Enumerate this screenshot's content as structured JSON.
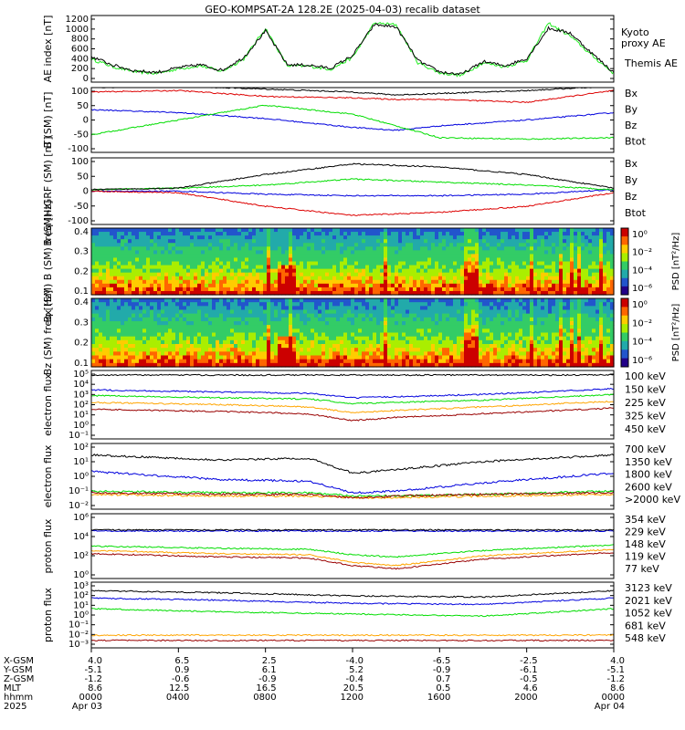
{
  "title": "GEO-KOMPSAT-2A 128.2E (2025-04-03) recalib dataset",
  "colors": {
    "black": "#000000",
    "blue": "#0000dd",
    "green": "#00dd00",
    "red": "#dd0000",
    "orange": "#ffa500",
    "darkred": "#990000",
    "kyoto": "#22ee22"
  },
  "chart_data": [
    {
      "type": "line",
      "panel": "ae",
      "ylabel": "AE index [nT]",
      "yticks": [
        "1200",
        "1000",
        "800",
        "600",
        "400",
        "200",
        "0"
      ],
      "ylim": [
        0,
        1300
      ],
      "series": [
        {
          "name": "Kyoto proxy AE",
          "color": "#22ee22",
          "x": [
            0,
            1,
            2,
            3,
            4,
            5,
            6,
            7,
            8,
            9,
            10,
            11,
            12,
            13,
            14,
            15,
            16,
            17,
            18,
            19,
            20,
            21,
            22,
            23,
            24
          ],
          "values": [
            450,
            300,
            200,
            170,
            260,
            320,
            210,
            450,
            1050,
            320,
            310,
            250,
            480,
            1150,
            1120,
            380,
            180,
            130,
            380,
            300,
            420,
            1150,
            900,
            520,
            170
          ]
        },
        {
          "name": "Themis AE",
          "color": "#000000",
          "x": [
            0,
            1,
            2,
            3,
            4,
            5,
            6,
            7,
            8,
            9,
            10,
            11,
            12,
            13,
            14,
            15,
            16,
            17,
            18,
            19,
            20,
            21,
            22,
            23,
            24
          ],
          "values": [
            500,
            330,
            220,
            190,
            280,
            340,
            230,
            480,
            1000,
            340,
            330,
            270,
            520,
            1120,
            1080,
            420,
            200,
            150,
            400,
            320,
            460,
            1050,
            960,
            560,
            190
          ]
        }
      ]
    },
    {
      "type": "line",
      "panel": "b_sm",
      "ylabel": "B (SM) [nT]",
      "yticks": [
        "100",
        "50",
        "0",
        "-50",
        "-100"
      ],
      "ylim": [
        -110,
        110
      ],
      "series": [
        {
          "name": "Bx",
          "color": "#0000dd",
          "x": [
            0,
            4,
            8,
            12,
            14,
            16,
            20,
            24
          ],
          "values": [
            35,
            25,
            5,
            -25,
            -35,
            -20,
            0,
            25
          ]
        },
        {
          "name": "By",
          "color": "#00dd00",
          "x": [
            0,
            4,
            8,
            12,
            14,
            16,
            20,
            24
          ],
          "values": [
            -50,
            0,
            50,
            20,
            -20,
            -60,
            -65,
            -60
          ]
        },
        {
          "name": "Bz",
          "color": "#dd0000",
          "x": [
            0,
            4,
            8,
            12,
            14,
            16,
            20,
            24
          ],
          "values": [
            95,
            100,
            80,
            75,
            70,
            70,
            60,
            100
          ]
        },
        {
          "name": "Btot",
          "color": "#000000",
          "x": [
            0,
            4,
            8,
            12,
            14,
            16,
            20,
            24
          ],
          "values": [
            110,
            115,
            105,
            95,
            85,
            90,
            100,
            115
          ]
        }
      ]
    },
    {
      "type": "line",
      "panel": "b_sm_igrf",
      "ylabel": "B (SM)-IGRF (SM) [nT]",
      "yticks": [
        "100",
        "50",
        "0",
        "-50",
        "-100"
      ],
      "ylim": [
        -110,
        110
      ],
      "series": [
        {
          "name": "Bx",
          "color": "#0000dd",
          "x": [
            0,
            4,
            8,
            12,
            16,
            20,
            24
          ],
          "values": [
            0,
            0,
            -10,
            -15,
            -15,
            -10,
            5
          ]
        },
        {
          "name": "By",
          "color": "#00dd00",
          "x": [
            0,
            4,
            8,
            12,
            16,
            20,
            24
          ],
          "values": [
            5,
            10,
            20,
            40,
            30,
            20,
            5
          ]
        },
        {
          "name": "Bz",
          "color": "#dd0000",
          "x": [
            0,
            4,
            8,
            12,
            16,
            20,
            24
          ],
          "values": [
            0,
            -5,
            -50,
            -80,
            -70,
            -50,
            -5
          ]
        },
        {
          "name": "Btot",
          "color": "#000000",
          "x": [
            0,
            4,
            8,
            12,
            16,
            20,
            24
          ],
          "values": [
            5,
            10,
            55,
            90,
            80,
            55,
            10
          ]
        }
      ]
    },
    {
      "type": "heatmap",
      "panel": "bx_spec",
      "ylabel": "Bx (SM) B (SM) freq [Hz]",
      "yticks": [
        "0.4",
        "0.3",
        "0.2",
        "0.1"
      ],
      "ylim": [
        0.05,
        0.5
      ],
      "colorbar_label": "PSD [nT²/Hz]",
      "colorbar_ticks": [
        "10⁰",
        "10⁻²",
        "10⁻⁴",
        "10⁻⁶"
      ]
    },
    {
      "type": "heatmap",
      "panel": "bz_spec",
      "ylabel": "Bz (SM) freq [Hz]",
      "yticks": [
        "0.4",
        "0.3",
        "0.2",
        "0.1"
      ],
      "ylim": [
        0.05,
        0.5
      ],
      "colorbar_label": "PSD [nT²/Hz]",
      "colorbar_ticks": [
        "10⁰",
        "10⁻²",
        "10⁻⁴",
        "10⁻⁶"
      ]
    },
    {
      "type": "line",
      "panel": "e_low",
      "ylabel": "electron flux",
      "log": true,
      "yticks": [
        "10⁵",
        "10⁴",
        "10³",
        "10²",
        "10¹",
        "10⁰",
        "10⁻¹"
      ],
      "ylim": [
        -1,
        5
      ],
      "series": [
        {
          "name": "100 keV",
          "color": "#000000",
          "x": [
            0,
            6,
            10,
            12,
            14,
            18,
            24
          ],
          "values": [
            4.6,
            4.6,
            4.6,
            4.6,
            4.6,
            4.6,
            4.6
          ]
        },
        {
          "name": "150 keV",
          "color": "#0000dd",
          "x": [
            0,
            6,
            10,
            12,
            14,
            18,
            24
          ],
          "values": [
            3.3,
            3.1,
            3.0,
            2.6,
            2.7,
            2.9,
            3.4
          ]
        },
        {
          "name": "225 keV",
          "color": "#00dd00",
          "x": [
            0,
            6,
            10,
            12,
            14,
            18,
            24
          ],
          "values": [
            2.8,
            2.6,
            2.5,
            2.1,
            2.2,
            2.4,
            2.9
          ]
        },
        {
          "name": "325 keV",
          "color": "#ffa500",
          "x": [
            0,
            6,
            10,
            12,
            14,
            18,
            24
          ],
          "values": [
            2.2,
            2.0,
            1.8,
            1.3,
            1.5,
            1.8,
            2.3
          ]
        },
        {
          "name": "450 keV",
          "color": "#990000",
          "x": [
            0,
            6,
            10,
            12,
            14,
            18,
            24
          ],
          "values": [
            1.6,
            1.4,
            1.2,
            0.6,
            0.9,
            1.2,
            1.7
          ]
        }
      ]
    },
    {
      "type": "line",
      "panel": "e_high",
      "ylabel": "electron flux",
      "log": true,
      "yticks": [
        "10²",
        "10¹",
        "10⁰",
        "10⁻¹",
        "10⁻²"
      ],
      "ylim": [
        -2,
        2
      ],
      "series": [
        {
          "name": "700 keV",
          "color": "#000000",
          "x": [
            0,
            6,
            10,
            12,
            14,
            18,
            24
          ],
          "values": [
            1.3,
            1.0,
            1.1,
            0.2,
            0.4,
            0.9,
            1.3
          ]
        },
        {
          "name": "1350 keV",
          "color": "#0000dd",
          "x": [
            0,
            6,
            10,
            12,
            14,
            18,
            24
          ],
          "values": [
            0.3,
            -0.2,
            -0.3,
            -1.0,
            -0.9,
            -0.4,
            0.2
          ]
        },
        {
          "name": "1800 keV",
          "color": "#00dd00",
          "x": [
            0,
            6,
            10,
            12,
            14,
            18,
            24
          ],
          "values": [
            -0.9,
            -1.0,
            -1.0,
            -1.2,
            -1.2,
            -1.1,
            -0.9
          ]
        },
        {
          "name": "2600 keV",
          "color": "#ffa500",
          "x": [
            0,
            6,
            10,
            12,
            14,
            18,
            24
          ],
          "values": [
            -1.1,
            -1.2,
            -1.2,
            -1.3,
            -1.3,
            -1.2,
            -1.1
          ]
        },
        {
          "name": ">2000 keV",
          "color": "#990000",
          "x": [
            0,
            6,
            10,
            12,
            14,
            18,
            24
          ],
          "values": [
            -1.0,
            -1.1,
            -1.1,
            -1.3,
            -1.2,
            -1.1,
            -1.0
          ]
        }
      ]
    },
    {
      "type": "line",
      "panel": "p_low",
      "ylabel": "proton flux",
      "log": true,
      "yticks": [
        "10⁶",
        "10⁴",
        "10²",
        "10⁰"
      ],
      "ylim": [
        0,
        6
      ],
      "series": [
        {
          "name": "354 keV",
          "color": "#990000",
          "x": [
            0,
            6,
            10,
            12,
            14,
            18,
            24
          ],
          "values": [
            2.3,
            2.0,
            1.9,
            1.2,
            0.9,
            1.8,
            2.4
          ]
        },
        {
          "name": "229 keV",
          "color": "#ffa500",
          "x": [
            0,
            6,
            10,
            12,
            14,
            18,
            24
          ],
          "values": [
            2.6,
            2.3,
            2.2,
            1.5,
            1.2,
            2.1,
            2.7
          ]
        },
        {
          "name": "148 keV",
          "color": "#00dd00",
          "x": [
            0,
            6,
            10,
            12,
            14,
            18,
            24
          ],
          "values": [
            3.0,
            2.8,
            2.7,
            2.2,
            2.0,
            2.6,
            3.1
          ]
        },
        {
          "name": "119 keV",
          "color": "#0000dd",
          "x": [
            0,
            6,
            10,
            12,
            14,
            18,
            24
          ],
          "values": [
            4.4,
            4.4,
            4.4,
            4.4,
            4.4,
            4.4,
            4.4
          ]
        },
        {
          "name": "77 keV",
          "color": "#000000",
          "x": [
            0,
            6,
            10,
            12,
            14,
            18,
            24
          ],
          "values": [
            4.5,
            4.5,
            4.5,
            4.5,
            4.5,
            4.5,
            4.5
          ]
        }
      ]
    },
    {
      "type": "line",
      "panel": "p_high",
      "ylabel": "proton flux",
      "log": true,
      "yticks": [
        "10³",
        "10²",
        "10¹",
        "10⁰",
        "10⁻¹",
        "10⁻²",
        "10⁻³"
      ],
      "ylim": [
        -3.2,
        3
      ],
      "series": [
        {
          "name": "3123 keV",
          "color": "#990000",
          "x": [
            0,
            6,
            12,
            18,
            24
          ],
          "values": [
            -2.5,
            -2.5,
            -2.5,
            -2.5,
            -2.5
          ]
        },
        {
          "name": "2021 keV",
          "color": "#ffa500",
          "x": [
            0,
            6,
            12,
            18,
            24
          ],
          "values": [
            -2.0,
            -2.0,
            -2.0,
            -2.0,
            -2.0
          ]
        },
        {
          "name": "1052 keV",
          "color": "#00dd00",
          "x": [
            0,
            6,
            12,
            18,
            24
          ],
          "values": [
            0.5,
            0.2,
            0.0,
            -0.2,
            0.5
          ]
        },
        {
          "name": "681 keV",
          "color": "#0000dd",
          "x": [
            0,
            6,
            12,
            18,
            24
          ],
          "values": [
            1.5,
            1.3,
            1.0,
            0.9,
            1.5
          ]
        },
        {
          "name": "548 keV",
          "color": "#000000",
          "x": [
            0,
            6,
            12,
            18,
            24
          ],
          "values": [
            2.2,
            2.0,
            1.7,
            1.6,
            2.2
          ]
        }
      ]
    }
  ],
  "ae_legend": {
    "kyoto": "Kyoto\nproxy AE",
    "themis": "Themis AE"
  },
  "xaxis": {
    "row_labels": [
      "X-GSM",
      "Y-GSM",
      "Z-GSM",
      "MLT",
      "hhmm",
      "2025"
    ],
    "columns": [
      [
        "4.0",
        "-5.1",
        "-1.2",
        "8.6",
        "0000",
        "Apr 03"
      ],
      [
        "6.5",
        "0.9",
        "-0.6",
        "12.5",
        "0400",
        ""
      ],
      [
        "2.5",
        "6.1",
        "-0.9",
        "16.5",
        "0800",
        ""
      ],
      [
        "-4.0",
        "5.2",
        "-0.4",
        "20.5",
        "1200",
        ""
      ],
      [
        "-6.5",
        "-0.9",
        "0.7",
        "0.5",
        "1600",
        ""
      ],
      [
        "-2.5",
        "-6.1",
        "-0.5",
        "4.6",
        "2000",
        ""
      ],
      [
        "4.0",
        "-5.1",
        "-1.2",
        "8.6",
        "0000",
        "Apr 04"
      ]
    ]
  }
}
